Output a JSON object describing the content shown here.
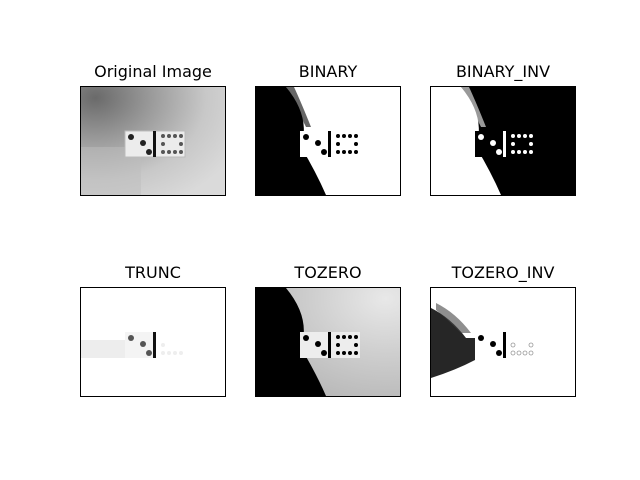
{
  "figure": {
    "panels": [
      {
        "title": "Original Image",
        "mode": "original"
      },
      {
        "title": "BINARY",
        "mode": "binary"
      },
      {
        "title": "BINARY_INV",
        "mode": "binary_inv"
      },
      {
        "title": "TRUNC",
        "mode": "trunc"
      },
      {
        "title": "TOZERO",
        "mode": "tozero"
      },
      {
        "title": "TOZERO_INV",
        "mode": "tozero_inv"
      }
    ]
  }
}
